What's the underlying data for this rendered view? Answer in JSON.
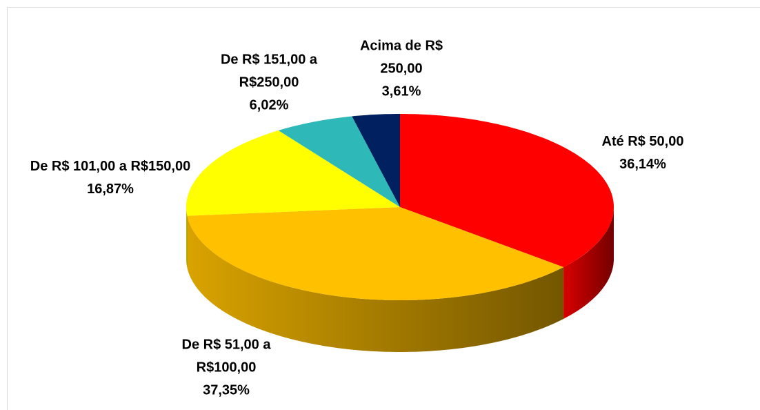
{
  "chart_data": {
    "type": "pie",
    "categories": [
      "Até R$ 50,00",
      "De R$ 51,00 a R$100,00",
      "De R$ 101,00 a R$150,00",
      "De R$ 151,00 a R$250,00",
      "Acima de R$ 250,00"
    ],
    "values": [
      36.14,
      37.35,
      16.87,
      6.02,
      3.61
    ],
    "value_labels": [
      "36,14%",
      "37,35%",
      "16,87%",
      "6,02%",
      "3,61%"
    ],
    "colors": [
      "#ff0000",
      "#ffc000",
      "#ffff00",
      "#2fb8b8",
      "#002060"
    ]
  }
}
